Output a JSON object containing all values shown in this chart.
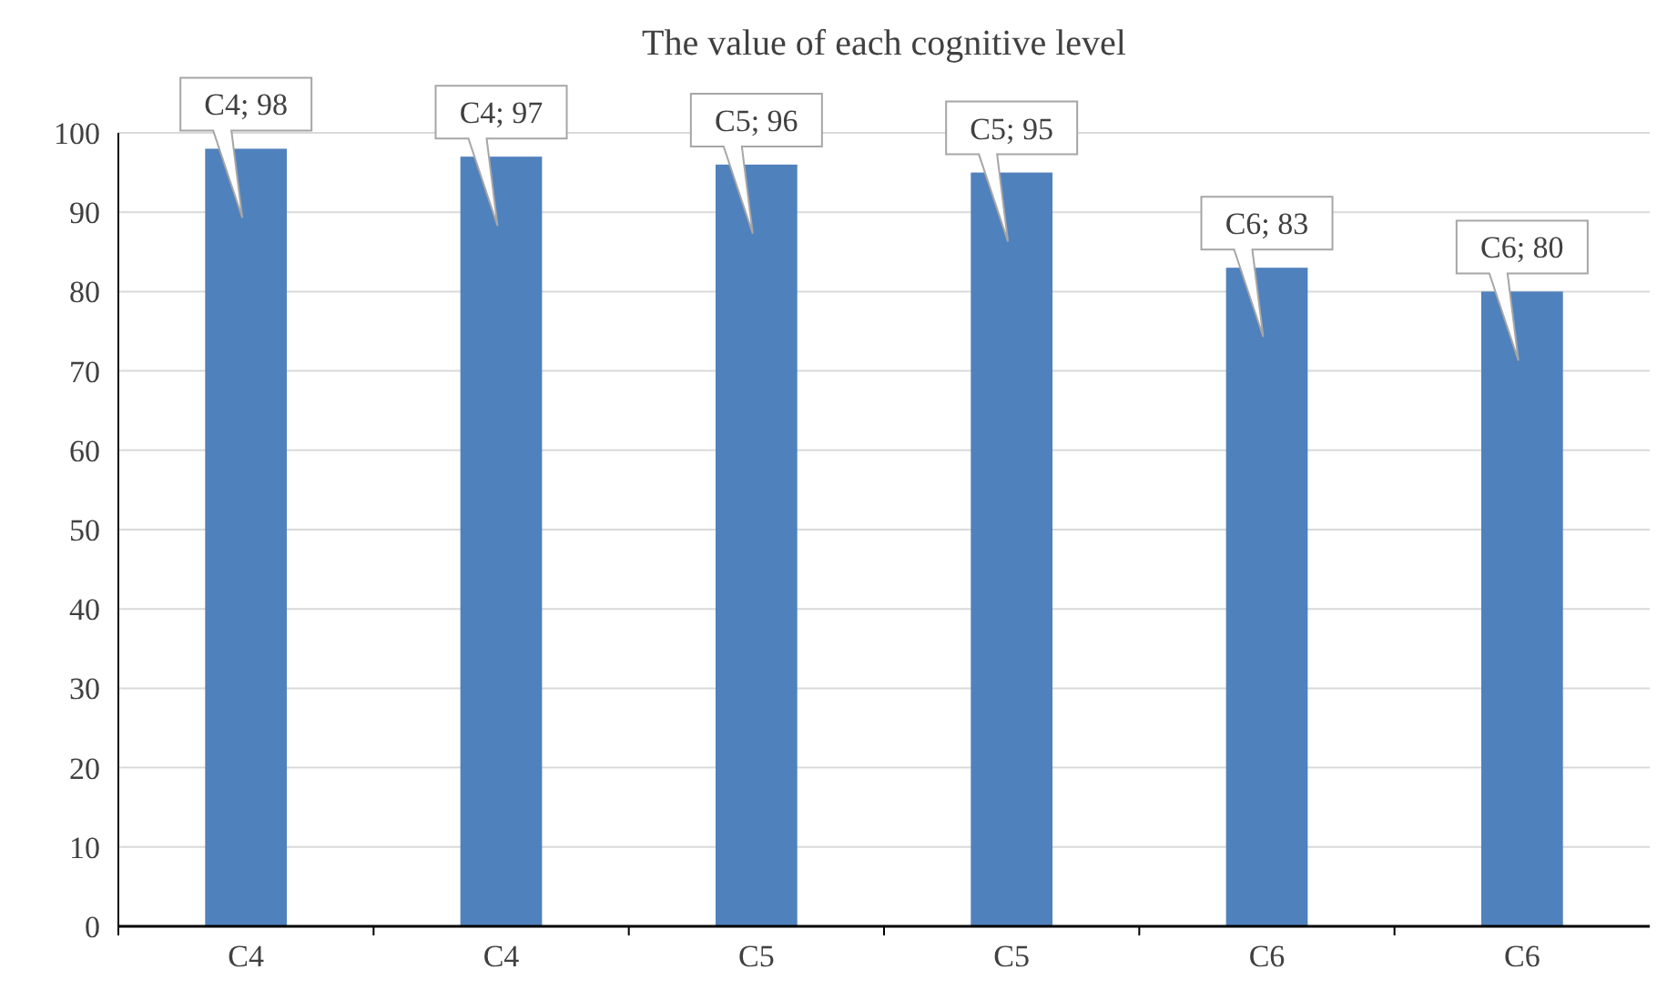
{
  "chart_data": {
    "type": "bar",
    "title": "The value of each cognitive level",
    "categories": [
      "C4",
      "C4",
      "C5",
      "C5",
      "C6",
      "C6"
    ],
    "values": [
      98,
      97,
      96,
      95,
      83,
      80
    ],
    "value_labels": [
      "C4; 98",
      "C4; 97",
      "C5; 96",
      "C5; 95",
      "C6; 83",
      "C6; 80"
    ],
    "color": "#4f81bd",
    "ylim": [
      0,
      100
    ],
    "yticks": [
      0,
      10,
      20,
      30,
      40,
      50,
      60,
      70,
      80,
      90,
      100
    ],
    "grid": "y"
  }
}
